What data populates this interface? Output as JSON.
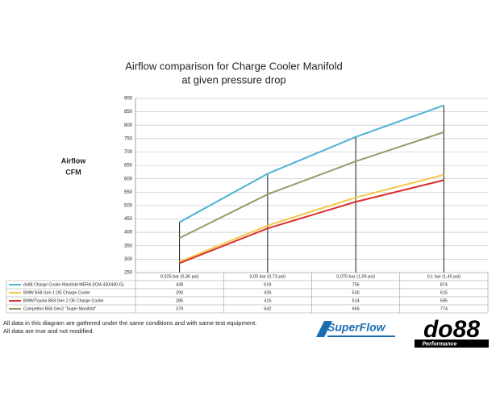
{
  "chart_data": {
    "type": "line",
    "title": "Airflow comparison for Charge Cooler Manifold",
    "subtitle": "at given pressure drop",
    "ylabel": "Airflow",
    "ylabel_unit": "CFM",
    "categories": [
      "0,025 bar (0,36 psi)",
      "0,05 bar (0,73 psi)",
      "0,075 bar (1,09 psi)",
      "0,1 bar (1,45 psi)"
    ],
    "series": [
      {
        "name": "do88 Charge Cooler Manifold MERA (ICM-430/440-G)",
        "color": "#4bb3d6",
        "values": [
          438,
          619,
          756,
          874
        ]
      },
      {
        "name": "BMW B58 Gen 1 OE Charge Cooler",
        "color": "#f2c94c",
        "values": [
          290,
          426,
          530,
          615
        ]
      },
      {
        "name": "BMW/Toyota B58 Gen 2 OE Charge Cooler",
        "color": "#d9302c",
        "values": [
          285,
          415,
          514,
          595
        ]
      },
      {
        "name": "Competitor B58 Gen2 \"Super Manifold\"",
        "color": "#9a9a6c",
        "values": [
          379,
          542,
          665,
          774
        ]
      }
    ],
    "ylim": [
      250,
      900
    ],
    "yticks": [
      250,
      300,
      350,
      400,
      450,
      500,
      550,
      600,
      650,
      700,
      750,
      800,
      850,
      900
    ],
    "grid": true,
    "data_table": true
  },
  "footnotes": [
    "All data in this diagram are gathered under the same conditions and with same test equipment.",
    "All data are true and not modified."
  ],
  "logos": {
    "superflow": "SuperFlow",
    "do88": "do88",
    "do88_sub": "Performance"
  }
}
